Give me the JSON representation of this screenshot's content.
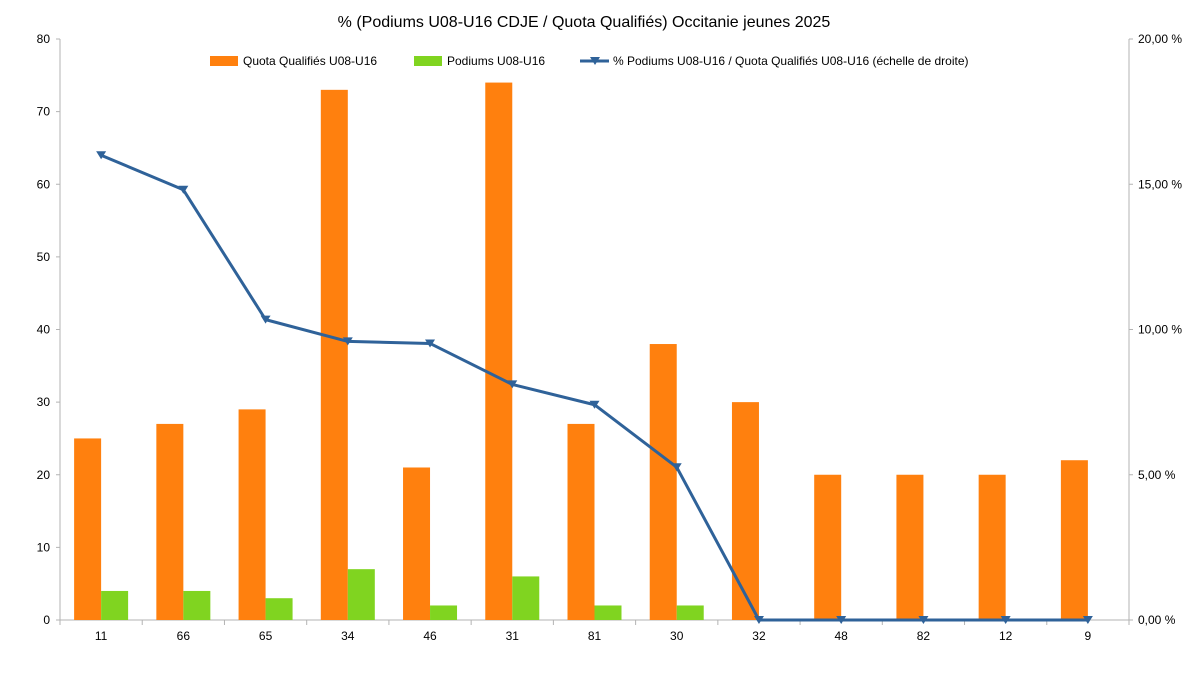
{
  "chart_data": {
    "type": "bar",
    "title": "% (Podiums U08-U16 CDJE / Quota Qualifiés) Occitanie jeunes 2025",
    "categories": [
      "11",
      "66",
      "65",
      "34",
      "46",
      "31",
      "81",
      "30",
      "32",
      "48",
      "82",
      "12",
      "9"
    ],
    "series": [
      {
        "name": "Quota Qualifiés U08-U16",
        "kind": "bar",
        "axis": "left",
        "color": "#ff800e",
        "values": [
          25,
          27,
          29,
          73,
          21,
          74,
          27,
          38,
          30,
          20,
          20,
          20,
          22
        ]
      },
      {
        "name": "Podiums U08-U16",
        "kind": "bar",
        "axis": "left",
        "color": "#80d420",
        "values": [
          4,
          4,
          3,
          7,
          2,
          6,
          2,
          2,
          0,
          0,
          0,
          0,
          0
        ]
      },
      {
        "name": "% Podiums U08-U16 / Quota Qualifiés U08-U16 (échelle de droite)",
        "kind": "line",
        "axis": "right",
        "color": "#2f6299",
        "values": [
          16.0,
          14.81,
          10.34,
          9.59,
          9.52,
          8.11,
          7.41,
          5.26,
          0.0,
          0.0,
          0.0,
          0.0,
          0.0
        ]
      }
    ],
    "ylim": [
      0,
      80
    ],
    "yticks": [
      "0",
      "10",
      "20",
      "30",
      "40",
      "50",
      "60",
      "70",
      "80"
    ],
    "y2lim": [
      0,
      20
    ],
    "y2ticks": [
      "0,00 %",
      "5,00 %",
      "10,00 %",
      "15,00 %",
      "20,00 %"
    ],
    "legend_position": "top",
    "grid": false
  }
}
